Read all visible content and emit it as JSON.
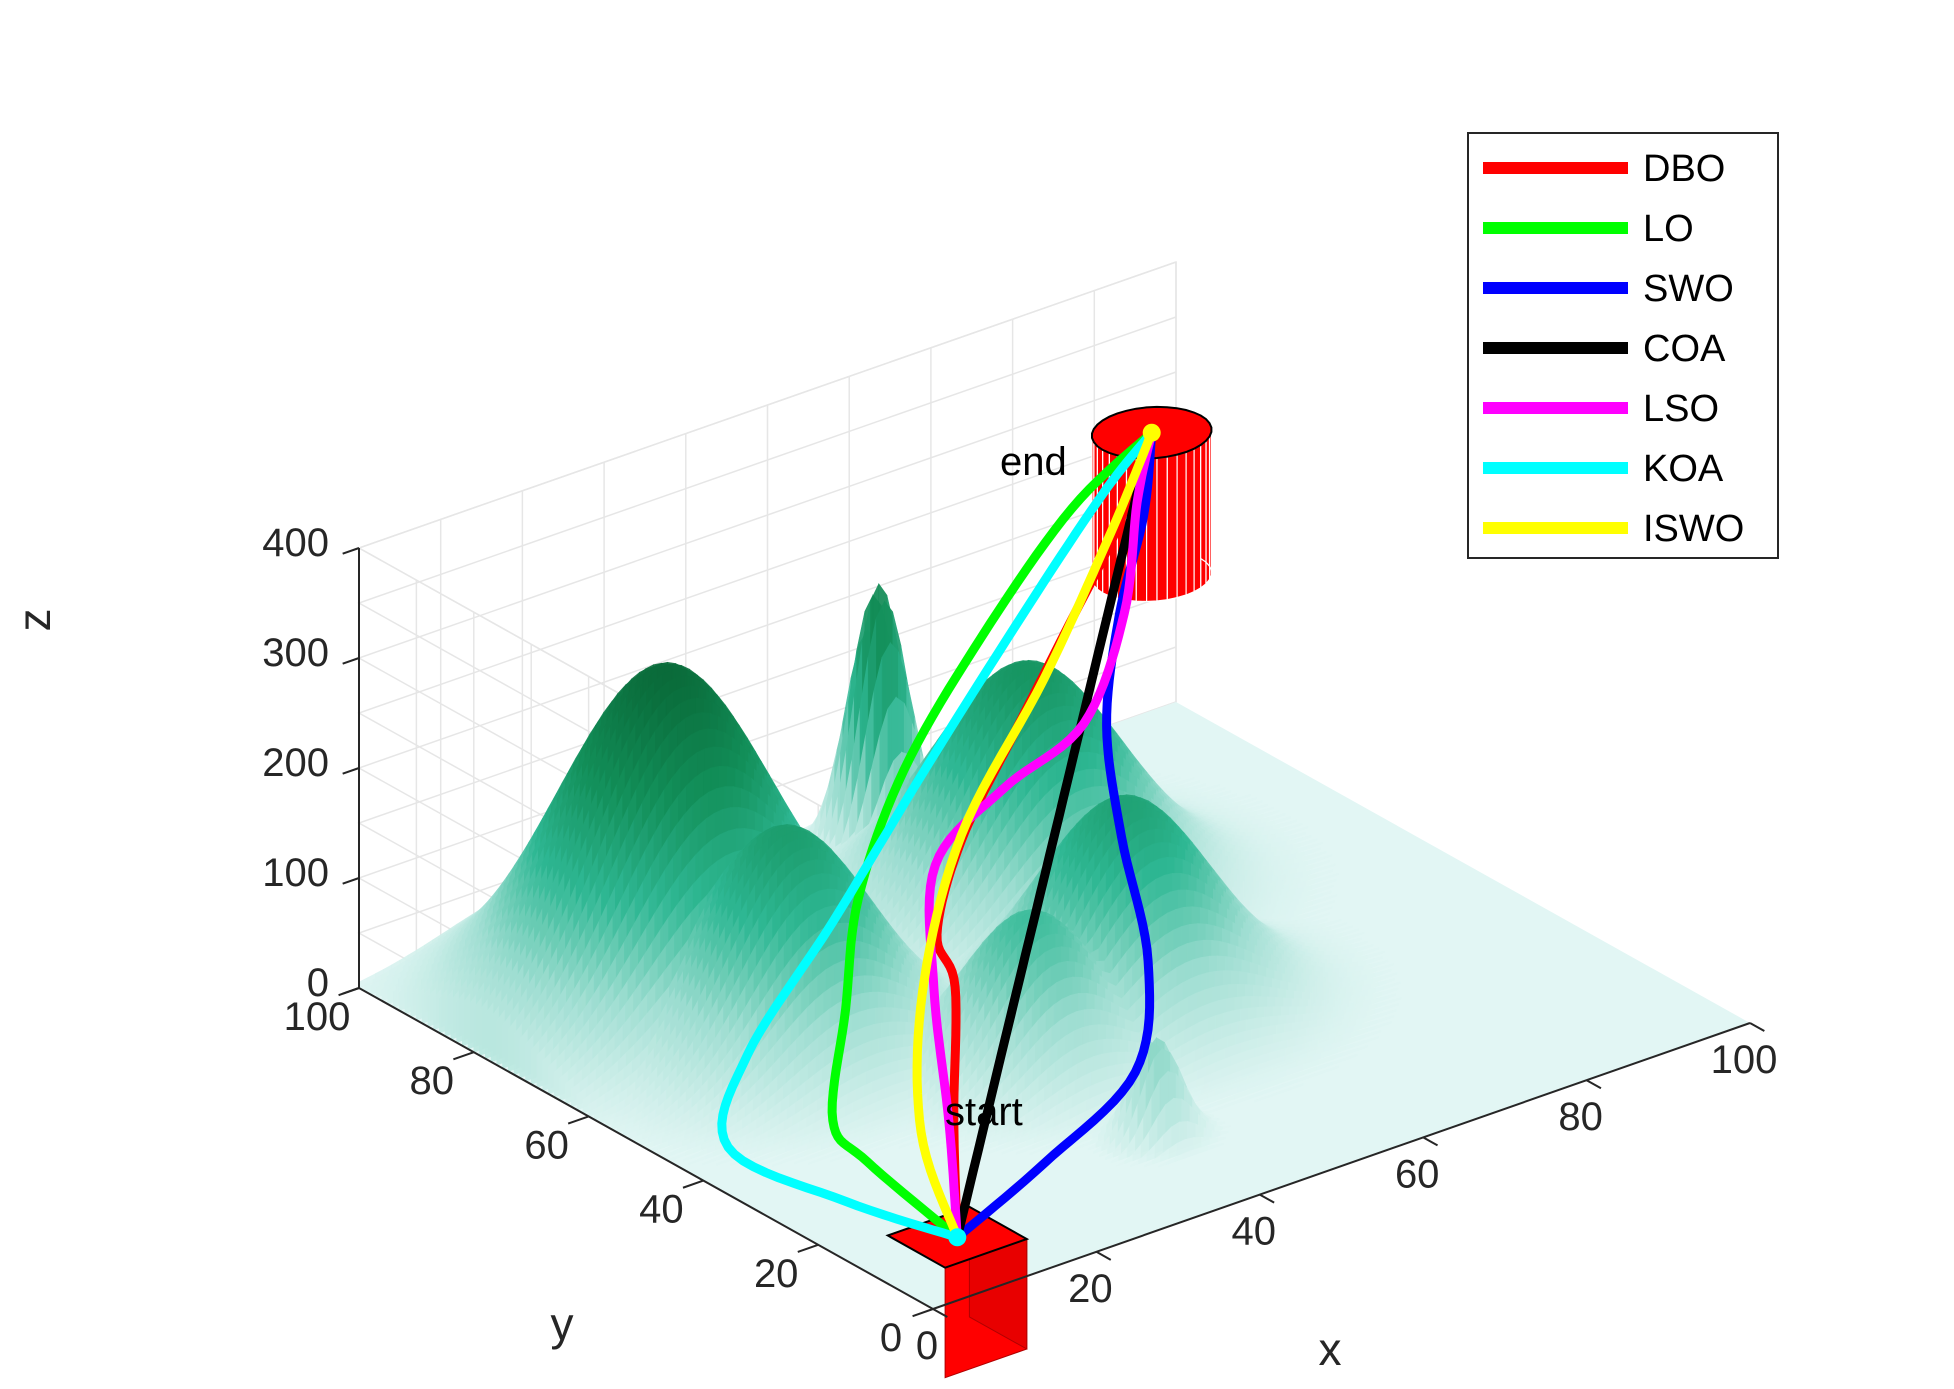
{
  "chart_data": {
    "type": "3d-surface-path",
    "title": "",
    "xlabel": "x",
    "ylabel": "y",
    "zlabel": "z",
    "xlim": [
      0,
      100
    ],
    "ylim": [
      0,
      100
    ],
    "zlim": [
      0,
      400
    ],
    "xticks": [
      "0",
      "20",
      "40",
      "60",
      "80",
      "100"
    ],
    "yticks": [
      "0",
      "20",
      "40",
      "60",
      "80",
      "100"
    ],
    "zticks": [
      "0",
      "100",
      "200",
      "300",
      "400"
    ],
    "grid": true,
    "legend_position": "top-right",
    "terrain_color_low": "#dff5f3",
    "terrain_color_high": "#0a6b3a",
    "threat_color": "#ff0000",
    "peaks": [
      {
        "x": 22,
        "y": 78,
        "h": 300,
        "sx": 11,
        "sy": 11
      },
      {
        "x": 24,
        "y": 60,
        "h": 200,
        "sx": 9,
        "sy": 9
      },
      {
        "x": 62,
        "y": 72,
        "h": 215,
        "sx": 10,
        "sy": 10
      },
      {
        "x": 55,
        "y": 45,
        "h": 190,
        "sx": 9,
        "sy": 9
      },
      {
        "x": 40,
        "y": 40,
        "h": 140,
        "sx": 7,
        "sy": 7
      },
      {
        "x": 58,
        "y": 92,
        "h": 240,
        "sx": 3,
        "sy": 3
      },
      {
        "x": 40,
        "y": 18,
        "h": 90,
        "sx": 2.5,
        "sy": 2.5
      }
    ],
    "start": {
      "label": "start",
      "x": 10,
      "y": 10,
      "z": 10
    },
    "end": {
      "label": "end",
      "x": 90,
      "y": 90,
      "z": 300
    },
    "series": [
      {
        "name": "DBO",
        "color": "#ff0000",
        "points": [
          [
            10,
            10,
            10
          ],
          [
            18,
            22,
            60
          ],
          [
            28,
            36,
            115
          ],
          [
            30,
            42,
            140
          ],
          [
            40,
            52,
            170
          ],
          [
            55,
            64,
            195
          ],
          [
            68,
            74,
            220
          ],
          [
            80,
            82,
            260
          ],
          [
            90,
            90,
            300
          ]
        ]
      },
      {
        "name": "LO",
        "color": "#00ff00",
        "points": [
          [
            10,
            10,
            10
          ],
          [
            6,
            20,
            60
          ],
          [
            6,
            26,
            80
          ],
          [
            16,
            38,
            120
          ],
          [
            26,
            50,
            160
          ],
          [
            40,
            62,
            205
          ],
          [
            58,
            74,
            245
          ],
          [
            76,
            84,
            285
          ],
          [
            90,
            90,
            300
          ]
        ]
      },
      {
        "name": "SWO",
        "color": "#0000ff",
        "points": [
          [
            10,
            10,
            10
          ],
          [
            22,
            12,
            40
          ],
          [
            36,
            16,
            75
          ],
          [
            46,
            28,
            115
          ],
          [
            54,
            44,
            160
          ],
          [
            62,
            58,
            200
          ],
          [
            72,
            70,
            240
          ],
          [
            82,
            80,
            275
          ],
          [
            90,
            90,
            300
          ]
        ]
      },
      {
        "name": "COA",
        "color": "#000000",
        "points": [
          [
            10,
            10,
            10
          ],
          [
            30,
            30,
            83
          ],
          [
            50,
            50,
            155
          ],
          [
            70,
            70,
            228
          ],
          [
            90,
            90,
            300
          ]
        ]
      },
      {
        "name": "LSO",
        "color": "#ff00ff",
        "points": [
          [
            10,
            10,
            10
          ],
          [
            16,
            20,
            70
          ],
          [
            24,
            34,
            130
          ],
          [
            34,
            48,
            175
          ],
          [
            48,
            56,
            185
          ],
          [
            62,
            62,
            190
          ],
          [
            74,
            72,
            230
          ],
          [
            84,
            84,
            270
          ],
          [
            90,
            90,
            300
          ]
        ]
      },
      {
        "name": "KOA",
        "color": "#00ffff",
        "points": [
          [
            10,
            10,
            10
          ],
          [
            2,
            18,
            40
          ],
          [
            -4,
            30,
            70
          ],
          [
            4,
            38,
            110
          ],
          [
            20,
            46,
            165
          ],
          [
            40,
            58,
            220
          ],
          [
            62,
            72,
            265
          ],
          [
            80,
            84,
            290
          ],
          [
            90,
            90,
            300
          ]
        ]
      },
      {
        "name": "ISWO",
        "color": "#ffff00",
        "points": [
          [
            10,
            10,
            10
          ],
          [
            14,
            22,
            60
          ],
          [
            24,
            36,
            120
          ],
          [
            40,
            52,
            175
          ],
          [
            60,
            66,
            225
          ],
          [
            78,
            80,
            270
          ],
          [
            90,
            90,
            300
          ]
        ]
      }
    ]
  }
}
